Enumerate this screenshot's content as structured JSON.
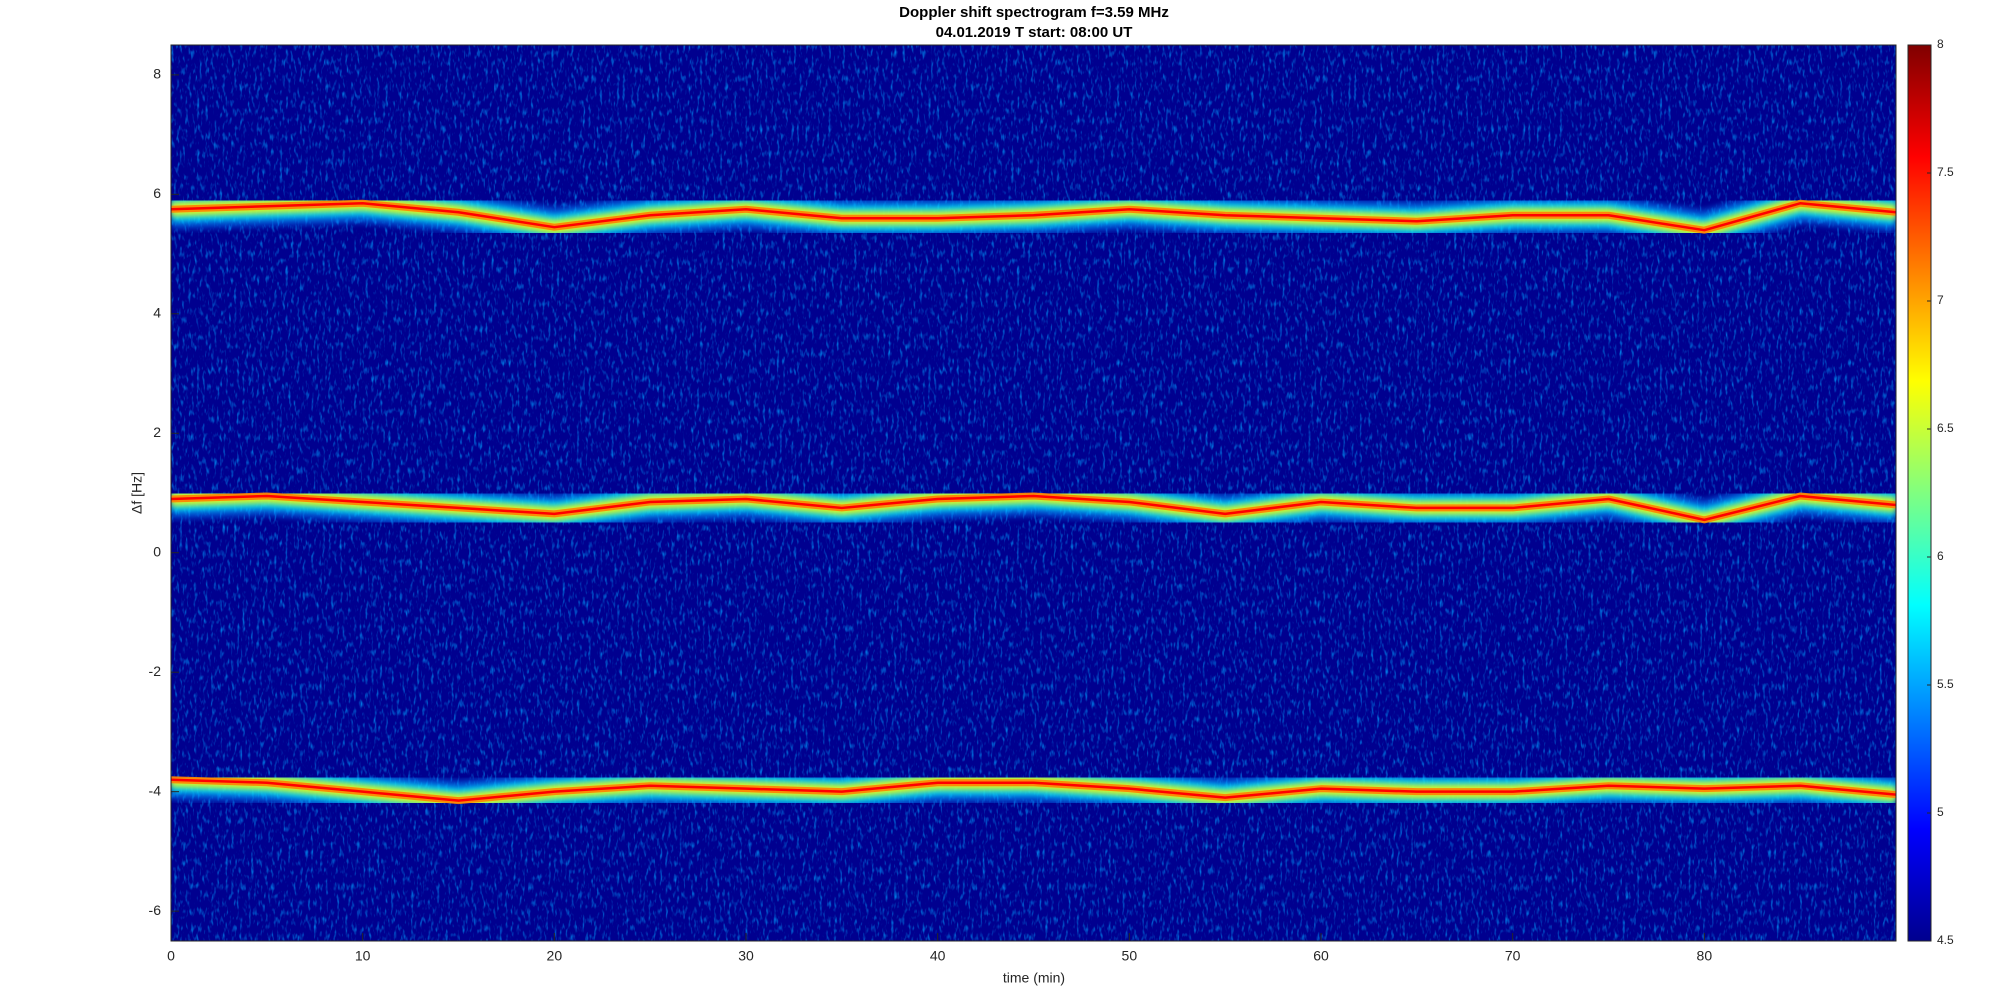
{
  "chart_data": {
    "type": "spectrogram",
    "title": "Doppler shift spectrogram f=3.59 MHz",
    "subtitle": "04.01.2019   T start: 08:00 UT",
    "xlabel": "time (min)",
    "ylabel": "Δf [Hz]",
    "xlim": [
      0,
      90
    ],
    "ylim": [
      -6.5,
      8.5
    ],
    "xticks": [
      0,
      10,
      20,
      30,
      40,
      50,
      60,
      70,
      80
    ],
    "yticks": [
      -6,
      -4,
      -2,
      0,
      2,
      4,
      6,
      8
    ],
    "background": "#00008f",
    "colormap": [
      "#00008f",
      "#0000ff",
      "#0080ff",
      "#00ffff",
      "#80ff80",
      "#ffff00",
      "#ff8000",
      "#ff0000",
      "#800000"
    ],
    "clim": [
      4.5,
      8
    ],
    "cticks": [
      4.5,
      5,
      5.5,
      6,
      6.5,
      7,
      7.5,
      8
    ],
    "x": [
      0,
      5,
      10,
      15,
      20,
      25,
      30,
      35,
      40,
      45,
      50,
      55,
      60,
      65,
      70,
      75,
      80,
      85,
      90
    ],
    "series": [
      {
        "color": "#ff0000",
        "values": [
          5.75,
          5.8,
          5.85,
          5.7,
          5.45,
          5.65,
          5.75,
          5.6,
          5.6,
          5.65,
          5.75,
          5.65,
          5.6,
          5.55,
          5.65,
          5.65,
          5.4,
          5.85,
          5.7
        ]
      },
      {
        "color": "#ff0000",
        "values": [
          0.9,
          0.95,
          0.85,
          0.75,
          0.65,
          0.85,
          0.9,
          0.75,
          0.9,
          0.95,
          0.85,
          0.65,
          0.85,
          0.75,
          0.75,
          0.9,
          0.55,
          0.95,
          0.8
        ]
      },
      {
        "color": "#ff0000",
        "values": [
          -3.8,
          -3.85,
          -4.0,
          -4.15,
          -4.0,
          -3.9,
          -3.95,
          -4.0,
          -3.85,
          -3.85,
          -3.95,
          -4.1,
          -3.95,
          -4.0,
          -4.0,
          -3.9,
          -3.95,
          -3.9,
          -4.05
        ]
      }
    ]
  }
}
